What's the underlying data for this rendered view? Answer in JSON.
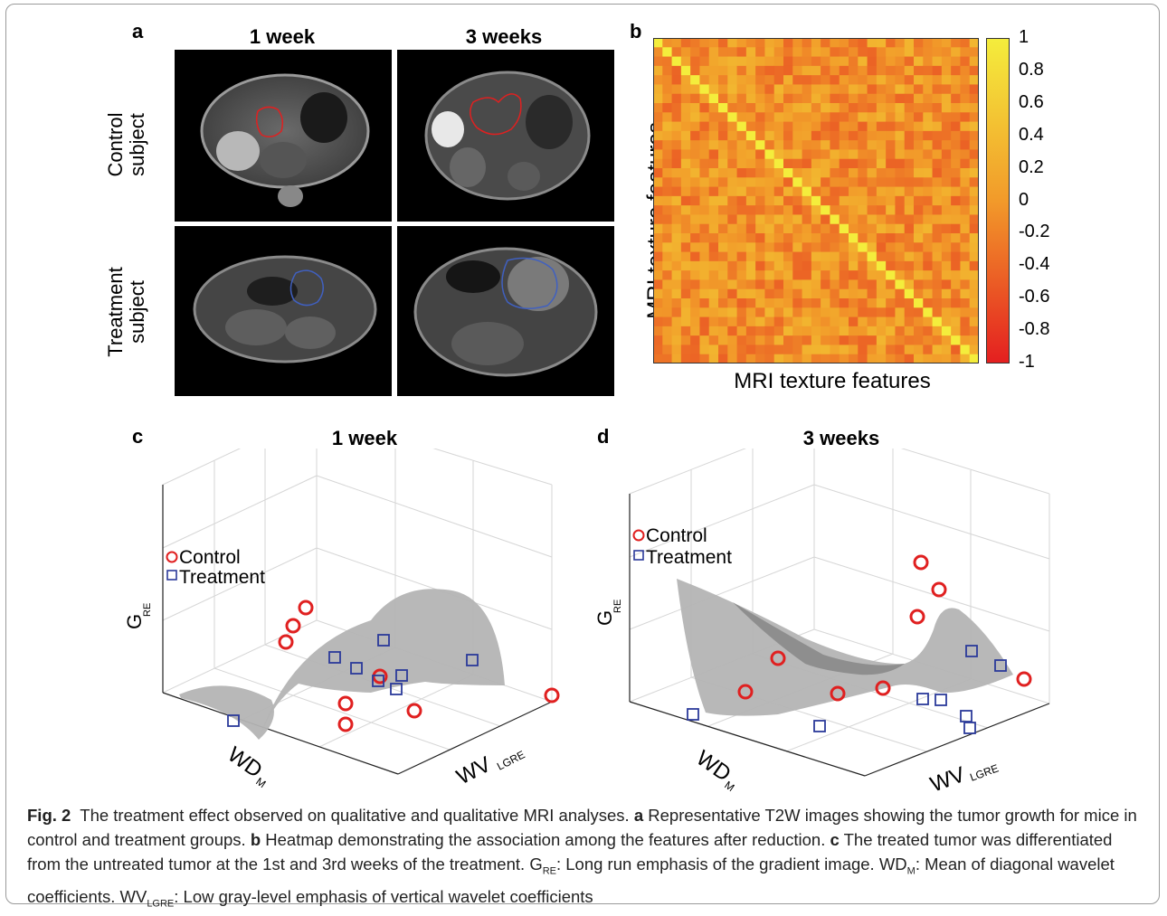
{
  "panel_a": {
    "letter": "a",
    "col_titles": [
      "1 week",
      "3 weeks"
    ],
    "row_labels": [
      [
        "Control",
        "subject"
      ],
      [
        "Treatment",
        "subject"
      ]
    ]
  },
  "panel_b": {
    "letter": "b",
    "ylabel": "MRI texture features",
    "xlabel": "MRI texture features",
    "colorbar_ticks": [
      "1",
      "0.8",
      "0.6",
      "0.4",
      "0.2",
      "0",
      "-0.2",
      "-0.4",
      "-0.6",
      "-0.8",
      "-1"
    ]
  },
  "panel_c": {
    "letter": "c",
    "title": "1 week",
    "legend": [
      "Control",
      "Treatment"
    ],
    "zlabel": "G",
    "zlabel_sub": "RE",
    "xlabel": "WD",
    "xlabel_sub": "M",
    "ylabel": "WV",
    "ylabel_sub": "LGRE"
  },
  "panel_d": {
    "letter": "d",
    "title": "3 weeks",
    "legend": [
      "Control",
      "Treatment"
    ],
    "zlabel": "G",
    "zlabel_sub": "RE",
    "xlabel": "WD",
    "xlabel_sub": "M",
    "ylabel": "WV",
    "ylabel_sub": "LGRE"
  },
  "colors": {
    "control": "#e02020",
    "treatment": "#2b3a9a",
    "surface": "#b4b4b4"
  },
  "caption": {
    "fig_label": "Fig. 2",
    "intro": "The treatment effect observed on qualitative and qualitative MRI analyses.",
    "a_label": "a",
    "a_text": "Representative T2W images showing the tumor growth for mice in control and treatment groups.",
    "b_label": "b",
    "b_text": "Heatmap demonstrating the association among the features after reduction.",
    "c_label": "c",
    "c_text": "The treated tumor was differentiated from the untreated tumor at the 1st and 3rd weeks of the treatment.",
    "g_abbr": "G",
    "g_sub": "RE",
    "g_def": ": Long run emphasis of the gradient image.",
    "wd_abbr": "WD",
    "wd_sub": "M",
    "wd_def": ": Mean of diagonal wavelet coefficients.",
    "wv_abbr": "WV",
    "wv_sub": "LGRE",
    "wv_def": ": Low gray-level emphasis of vertical wavelet coefficients"
  }
}
